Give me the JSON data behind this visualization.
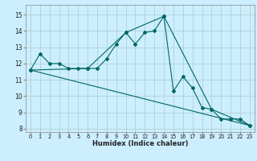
{
  "xlabel": "Humidex (Indice chaleur)",
  "background_color": "#cceeff",
  "grid_color": "#aacccc",
  "line_color": "#006666",
  "xlim": [
    -0.5,
    23.5
  ],
  "ylim": [
    7.8,
    15.6
  ],
  "yticks": [
    8,
    9,
    10,
    11,
    12,
    13,
    14,
    15
  ],
  "xticks": [
    0,
    1,
    2,
    3,
    4,
    5,
    6,
    7,
    8,
    9,
    10,
    11,
    12,
    13,
    14,
    15,
    16,
    17,
    18,
    19,
    20,
    21,
    22,
    23
  ],
  "series1_x": [
    0,
    1,
    2,
    3,
    4,
    5,
    6,
    7,
    8,
    9,
    10,
    11,
    12,
    13,
    14,
    15,
    16,
    17,
    18,
    19,
    20,
    21,
    22,
    23
  ],
  "series1_y": [
    11.6,
    12.6,
    12.0,
    12.0,
    11.7,
    11.7,
    11.7,
    11.7,
    12.3,
    13.2,
    13.9,
    13.2,
    13.9,
    14.0,
    14.9,
    10.3,
    11.2,
    10.5,
    9.3,
    9.2,
    8.6,
    8.6,
    8.6,
    8.2
  ],
  "series2_x": [
    0,
    6,
    10,
    14,
    19,
    23
  ],
  "series2_y": [
    11.6,
    11.7,
    13.9,
    14.9,
    9.2,
    8.2
  ],
  "series3_x": [
    0,
    23
  ],
  "series3_y": [
    11.6,
    8.2
  ]
}
